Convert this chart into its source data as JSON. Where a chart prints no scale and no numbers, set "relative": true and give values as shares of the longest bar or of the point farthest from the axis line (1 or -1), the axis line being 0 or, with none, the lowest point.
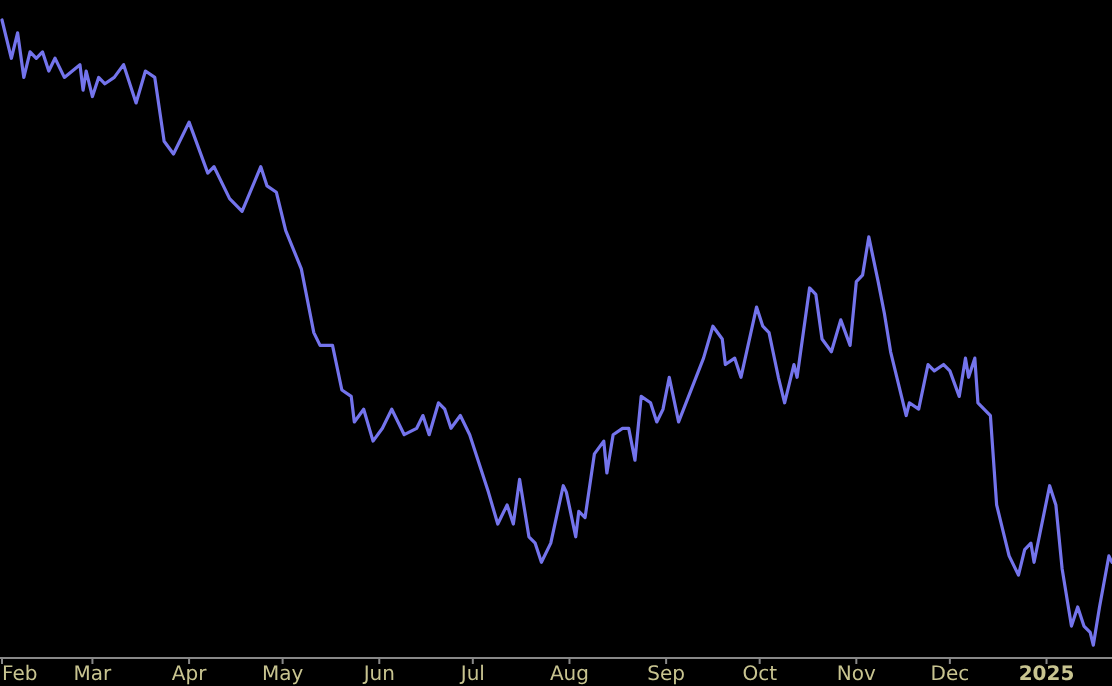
{
  "chart_data": {
    "type": "line",
    "relative": true,
    "xlim": [
      "2024-02-01",
      "2025-01-22"
    ],
    "xticks": [
      {
        "value": "2024-02-01",
        "label": "Feb"
      },
      {
        "value": "2024-03-01",
        "label": "Mar"
      },
      {
        "value": "2024-04-01",
        "label": "Apr"
      },
      {
        "value": "2024-05-01",
        "label": "May"
      },
      {
        "value": "2024-06-01",
        "label": "Jun"
      },
      {
        "value": "2024-07-01",
        "label": "Jul"
      },
      {
        "value": "2024-08-01",
        "label": "Aug"
      },
      {
        "value": "2024-09-01",
        "label": "Sep"
      },
      {
        "value": "2024-10-01",
        "label": "Oct"
      },
      {
        "value": "2024-11-01",
        "label": "Nov"
      },
      {
        "value": "2024-12-01",
        "label": "Dec"
      },
      {
        "value": "2025-01-01",
        "label": "2025"
      }
    ],
    "x": [
      "2024-02-01",
      "2024-02-04",
      "2024-02-06",
      "2024-02-08",
      "2024-02-10",
      "2024-02-12",
      "2024-02-14",
      "2024-02-16",
      "2024-02-18",
      "2024-02-19",
      "2024-02-21",
      "2024-02-26",
      "2024-02-27",
      "2024-02-28",
      "2024-03-01",
      "2024-03-03",
      "2024-03-05",
      "2024-03-08",
      "2024-03-11",
      "2024-03-15",
      "2024-03-18",
      "2024-03-21",
      "2024-03-24",
      "2024-03-27",
      "2024-04-01",
      "2024-04-07",
      "2024-04-09",
      "2024-04-14",
      "2024-04-18",
      "2024-04-24",
      "2024-04-26",
      "2024-04-29",
      "2024-05-02",
      "2024-05-07",
      "2024-05-11",
      "2024-05-13",
      "2024-05-17",
      "2024-05-20",
      "2024-05-23",
      "2024-05-24",
      "2024-05-27",
      "2024-05-30",
      "2024-06-02",
      "2024-06-05",
      "2024-06-09",
      "2024-06-13",
      "2024-06-15",
      "2024-06-17",
      "2024-06-20",
      "2024-06-22",
      "2024-06-24",
      "2024-06-27",
      "2024-06-30",
      "2024-07-06",
      "2024-07-09",
      "2024-07-12",
      "2024-07-14",
      "2024-07-16",
      "2024-07-19",
      "2024-07-21",
      "2024-07-23",
      "2024-07-26",
      "2024-07-30",
      "2024-07-31",
      "2024-08-03",
      "2024-08-04",
      "2024-08-06",
      "2024-08-09",
      "2024-08-12",
      "2024-08-13",
      "2024-08-15",
      "2024-08-18",
      "2024-08-20",
      "2024-08-22",
      "2024-08-24",
      "2024-08-27",
      "2024-08-29",
      "2024-08-31",
      "2024-09-02",
      "2024-09-05",
      "2024-09-13",
      "2024-09-16",
      "2024-09-19",
      "2024-09-20",
      "2024-09-23",
      "2024-09-25",
      "2024-09-30",
      "2024-10-02",
      "2024-10-04",
      "2024-10-07",
      "2024-10-09",
      "2024-10-12",
      "2024-10-13",
      "2024-10-17",
      "2024-10-19",
      "2024-10-21",
      "2024-10-24",
      "2024-10-27",
      "2024-10-30",
      "2024-11-01",
      "2024-11-03",
      "2024-11-05",
      "2024-11-08",
      "2024-11-10",
      "2024-11-12",
      "2024-11-17",
      "2024-11-18",
      "2024-11-21",
      "2024-11-24",
      "2024-11-26",
      "2024-11-29",
      "2024-12-01",
      "2024-12-04",
      "2024-12-06",
      "2024-12-07",
      "2024-12-09",
      "2024-12-10",
      "2024-12-14",
      "2024-12-16",
      "2024-12-20",
      "2024-12-23",
      "2024-12-25",
      "2024-12-27",
      "2024-12-28",
      "2025-01-02",
      "2025-01-04",
      "2025-01-06",
      "2025-01-09",
      "2025-01-11",
      "2025-01-13",
      "2025-01-15",
      "2025-01-16",
      "2025-01-18",
      "2025-01-21",
      "2025-01-22"
    ],
    "series": [
      {
        "color": "#7474ec",
        "values": [
          1.0,
          0.94,
          0.98,
          0.91,
          0.95,
          0.94,
          0.95,
          0.92,
          0.94,
          0.93,
          0.91,
          0.93,
          0.89,
          0.92,
          0.88,
          0.91,
          0.9,
          0.91,
          0.93,
          0.87,
          0.92,
          0.91,
          0.81,
          0.79,
          0.84,
          0.76,
          0.77,
          0.72,
          0.7,
          0.77,
          0.74,
          0.73,
          0.67,
          0.61,
          0.51,
          0.49,
          0.49,
          0.42,
          0.41,
          0.37,
          0.39,
          0.34,
          0.36,
          0.39,
          0.35,
          0.36,
          0.38,
          0.35,
          0.4,
          0.39,
          0.36,
          0.38,
          0.35,
          0.26,
          0.21,
          0.24,
          0.21,
          0.28,
          0.19,
          0.18,
          0.15,
          0.18,
          0.27,
          0.26,
          0.19,
          0.23,
          0.22,
          0.32,
          0.34,
          0.29,
          0.35,
          0.36,
          0.36,
          0.31,
          0.41,
          0.4,
          0.37,
          0.39,
          0.44,
          0.37,
          0.47,
          0.52,
          0.5,
          0.46,
          0.47,
          0.44,
          0.55,
          0.52,
          0.51,
          0.44,
          0.4,
          0.46,
          0.44,
          0.58,
          0.57,
          0.5,
          0.48,
          0.53,
          0.49,
          0.59,
          0.6,
          0.66,
          0.59,
          0.54,
          0.48,
          0.38,
          0.4,
          0.39,
          0.46,
          0.45,
          0.46,
          0.45,
          0.41,
          0.47,
          0.44,
          0.47,
          0.4,
          0.38,
          0.24,
          0.16,
          0.13,
          0.17,
          0.18,
          0.15,
          0.27,
          0.24,
          0.14,
          0.05,
          0.08,
          0.05,
          0.04,
          0.02,
          0.08,
          0.16,
          0.15
        ]
      }
    ]
  }
}
